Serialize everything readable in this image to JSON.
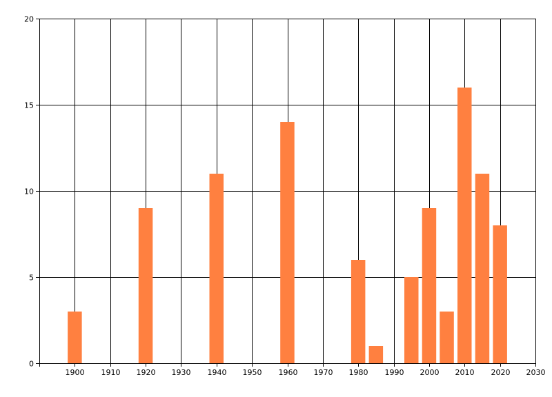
{
  "chart_data": {
    "type": "bar",
    "bar_color": "#FF8040",
    "grid": true,
    "x": [
      1900,
      1920,
      1940,
      1960,
      1980,
      1985,
      1995,
      2000,
      2005,
      2010,
      2015,
      2020
    ],
    "values": [
      3,
      9,
      11,
      14,
      6,
      1,
      5,
      9,
      3,
      16,
      11,
      8
    ],
    "xlim": [
      1890,
      2030
    ],
    "ylim": [
      0,
      20
    ],
    "x_ticks": [
      1900,
      1910,
      1920,
      1930,
      1940,
      1950,
      1960,
      1970,
      1980,
      1990,
      2000,
      2010,
      2020,
      2030
    ],
    "y_ticks": [
      0,
      5,
      10,
      15,
      20
    ],
    "bar_width_years": 4
  }
}
